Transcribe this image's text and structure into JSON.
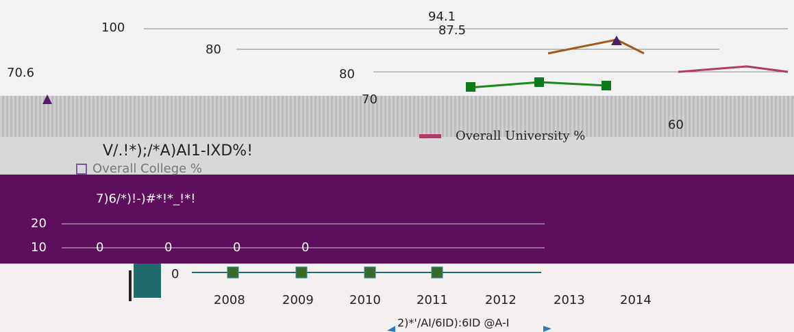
{
  "top_panel": {
    "labels": [
      "100",
      "94.1",
      "87.5",
      "80",
      "70.6",
      "80",
      "70",
      "60"
    ]
  },
  "legend": {
    "items": [
      "Overall University %",
      "Overall College %"
    ]
  },
  "garbled": {
    "title": "V/.!*);/*A)AI1-IXD%!",
    "subtitle": "7)6/*)!-)#*!*_!*!",
    "caption": "2)*'/AI/6ID):6ID @A-I"
  },
  "lower_chart": {
    "y_ticks": [
      "20",
      "10",
      "0"
    ],
    "point_labels": [
      "0",
      "0",
      "0",
      "0"
    ],
    "years": [
      "2008",
      "2009",
      "2010",
      "2011",
      "2012",
      "2013",
      "2014"
    ]
  }
}
